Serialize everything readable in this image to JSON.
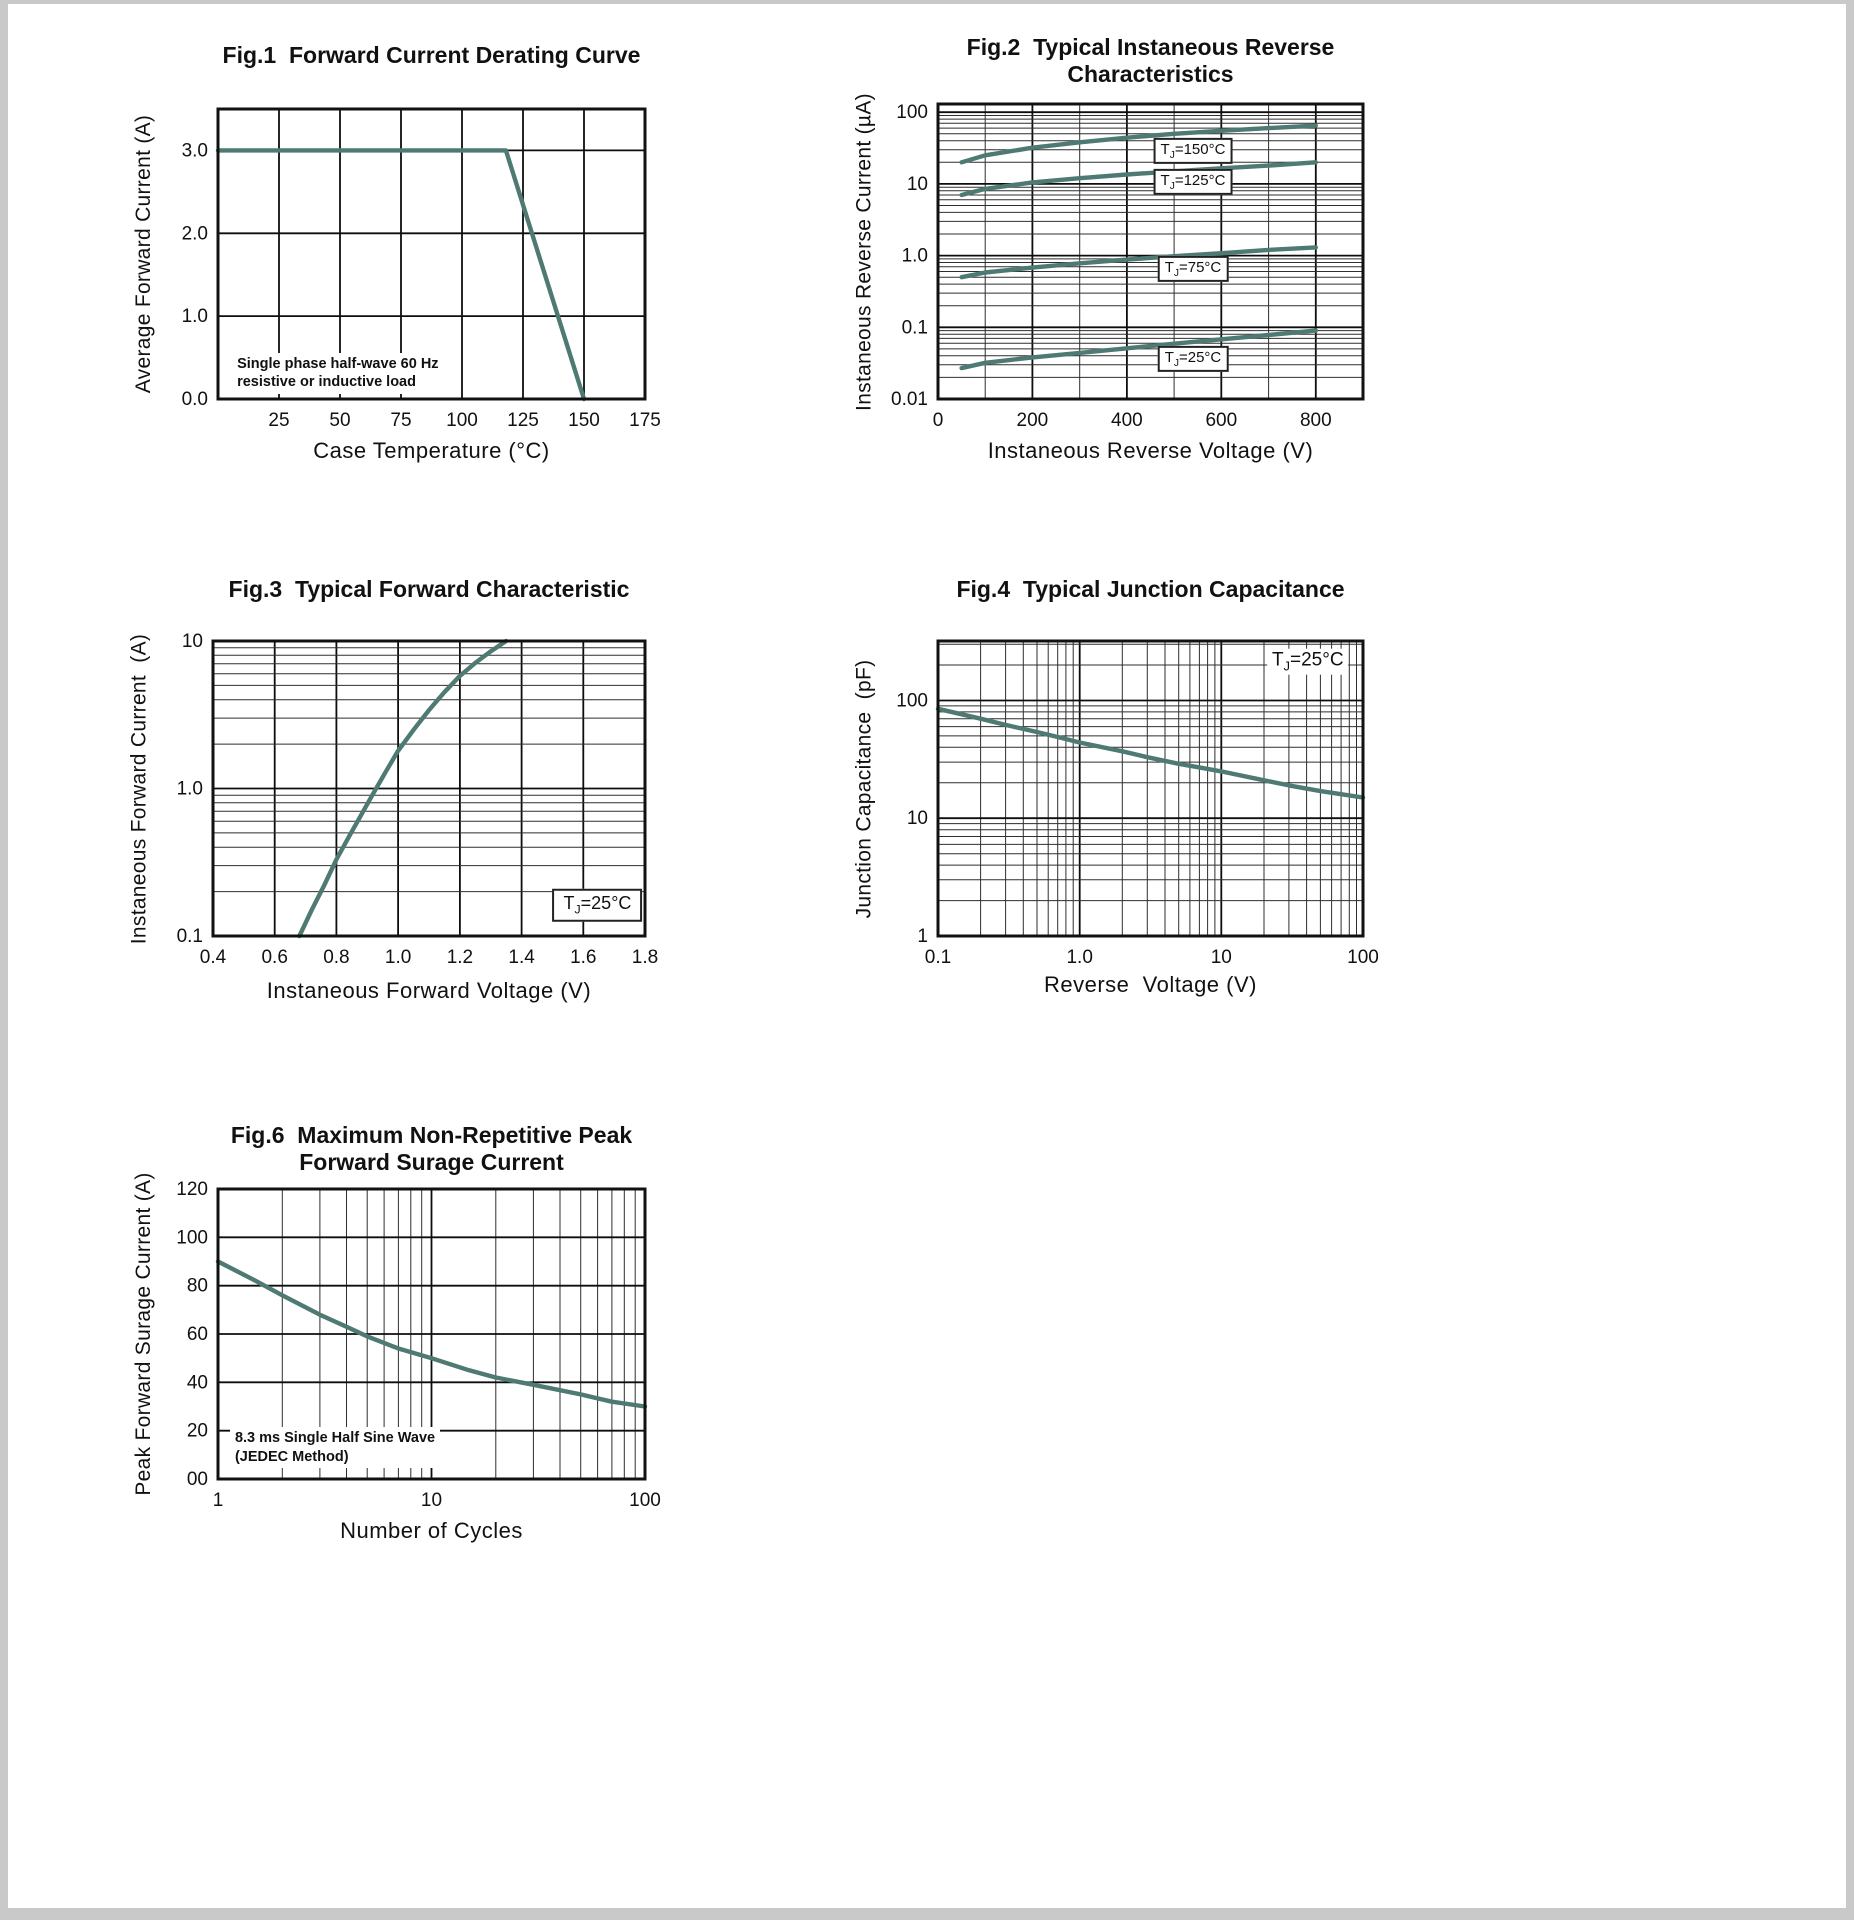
{
  "page": {
    "background": "#ffffff"
  },
  "theme": {
    "curve_color": "#4f7a74",
    "grid_major": "#0d0d0d",
    "grid_minor": "#2e2e2e",
    "border_color": "#111111"
  },
  "chart_data": [
    {
      "id": "fig1",
      "type": "line",
      "title": "Fig.1  Forward Current Derating Curve",
      "xlabel": "Case Temperature (°C)",
      "ylabel": "Average Forward Current (A)",
      "x_axis": {
        "scale": "linear",
        "min": 0,
        "max": 175,
        "grid": [
          25,
          50,
          75,
          100,
          125,
          150
        ],
        "ticks": [
          {
            "v": 25,
            "label": "25"
          },
          {
            "v": 50,
            "label": "50"
          },
          {
            "v": 75,
            "label": "75"
          },
          {
            "v": 100,
            "label": "100"
          },
          {
            "v": 125,
            "label": "125"
          },
          {
            "v": 150,
            "label": "150"
          },
          {
            "v": 175,
            "label": "175"
          }
        ]
      },
      "y_axis": {
        "scale": "linear",
        "min": 0,
        "max": 3.5,
        "grid": [
          1,
          2,
          3
        ],
        "ticks": [
          {
            "v": 0,
            "label": "0.0"
          },
          {
            "v": 1,
            "label": "1.0"
          },
          {
            "v": 2,
            "label": "2.0"
          },
          {
            "v": 3,
            "label": "3.0"
          }
        ]
      },
      "series": [
        {
          "name": "forward-current-derating",
          "points": [
            [
              0,
              3.0
            ],
            [
              118,
              3.0
            ],
            [
              150,
              0
            ]
          ]
        }
      ],
      "annotations": [
        {
          "name": "load-condition-note",
          "style": "note",
          "anchor": "tl",
          "fx": 0.033,
          "fy": 0.84,
          "text": "Single phase half-wave 60 Hz\nresistive or inductive load"
        }
      ]
    },
    {
      "id": "fig2",
      "type": "line",
      "title": "Fig.2  Typical Instaneous Reverse\nCharacteristics",
      "xlabel": "Instaneous Reverse Voltage (V)",
      "ylabel": "Instaneous Reverse Current (µA)",
      "x_axis": {
        "scale": "linear",
        "min": 0,
        "max": 900,
        "grid": [
          100,
          200,
          300,
          400,
          500,
          600,
          700,
          800
        ],
        "major_grid": [
          200,
          400,
          600,
          800
        ],
        "ticks": [
          {
            "v": 0,
            "label": "0"
          },
          {
            "v": 200,
            "label": "200"
          },
          {
            "v": 400,
            "label": "400"
          },
          {
            "v": 600,
            "label": "600"
          },
          {
            "v": 800,
            "label": "800"
          }
        ]
      },
      "y_axis": {
        "scale": "log",
        "min": 0.01,
        "max": 130,
        "ticks": [
          {
            "v": 100,
            "label": "100"
          },
          {
            "v": 10,
            "label": "10"
          },
          {
            "v": 1,
            "label": "1.0"
          },
          {
            "v": 0.1,
            "label": "0.1"
          },
          {
            "v": 0.01,
            "label": "0.01"
          }
        ]
      },
      "series": [
        {
          "name": "tj-150c",
          "points": [
            [
              50,
              20
            ],
            [
              100,
              25
            ],
            [
              200,
              32
            ],
            [
              300,
              38
            ],
            [
              400,
              44
            ],
            [
              500,
              50
            ],
            [
              600,
              55
            ],
            [
              700,
              60
            ],
            [
              800,
              65
            ]
          ]
        },
        {
          "name": "tj-125c",
          "points": [
            [
              50,
              7
            ],
            [
              100,
              8.5
            ],
            [
              200,
              10.5
            ],
            [
              300,
              12
            ],
            [
              400,
              13.5
            ],
            [
              500,
              15
            ],
            [
              600,
              16.5
            ],
            [
              700,
              18
            ],
            [
              800,
              20
            ]
          ]
        },
        {
          "name": "tj-75c",
          "points": [
            [
              50,
              0.5
            ],
            [
              100,
              0.58
            ],
            [
              200,
              0.68
            ],
            [
              300,
              0.78
            ],
            [
              400,
              0.88
            ],
            [
              500,
              0.98
            ],
            [
              600,
              1.08
            ],
            [
              700,
              1.2
            ],
            [
              800,
              1.3
            ]
          ]
        },
        {
          "name": "tj-25c",
          "points": [
            [
              50,
              0.027
            ],
            [
              100,
              0.032
            ],
            [
              200,
              0.038
            ],
            [
              300,
              0.044
            ],
            [
              400,
              0.051
            ],
            [
              500,
              0.059
            ],
            [
              600,
              0.068
            ],
            [
              700,
              0.078
            ],
            [
              800,
              0.09
            ]
          ]
        }
      ],
      "annotations": [
        {
          "name": "tj-150c-label",
          "style": "boxed",
          "anchor": "center",
          "fx": 0.6,
          "fy": 0.158,
          "text": "TJ=150°C"
        },
        {
          "name": "tj-125c-label",
          "style": "boxed",
          "anchor": "center",
          "fx": 0.6,
          "fy": 0.265,
          "text": "TJ=125°C"
        },
        {
          "name": "tj-75c-label",
          "style": "boxed",
          "anchor": "center",
          "fx": 0.6,
          "fy": 0.558,
          "text": "TJ=75°C"
        },
        {
          "name": "tj-25c-label",
          "style": "boxed",
          "anchor": "center",
          "fx": 0.6,
          "fy": 0.864,
          "text": "TJ=25°C"
        }
      ]
    },
    {
      "id": "fig3",
      "type": "line",
      "title": "Fig.3  Typical Forward Characteristic",
      "xlabel": "Instaneous Forward Voltage (V)",
      "ylabel": "Instaneous Forward Current  (A)",
      "x_axis": {
        "scale": "linear",
        "min": 0.4,
        "max": 1.8,
        "grid": [
          0.6,
          0.8,
          1.0,
          1.2,
          1.4,
          1.6
        ],
        "ticks": [
          {
            "v": 0.4,
            "label": "0.4"
          },
          {
            "v": 0.6,
            "label": "0.6"
          },
          {
            "v": 0.8,
            "label": "0.8"
          },
          {
            "v": 1.0,
            "label": "1.0"
          },
          {
            "v": 1.2,
            "label": "1.2"
          },
          {
            "v": 1.4,
            "label": "1.4"
          },
          {
            "v": 1.6,
            "label": "1.6"
          },
          {
            "v": 1.8,
            "label": "1.8"
          }
        ]
      },
      "y_axis": {
        "scale": "log",
        "min": 0.1,
        "max": 10,
        "ticks": [
          {
            "v": 10,
            "label": "10"
          },
          {
            "v": 1,
            "label": "1.0"
          },
          {
            "v": 0.1,
            "label": "0.1"
          }
        ]
      },
      "series": [
        {
          "name": "forward-characteristic",
          "points": [
            [
              0.68,
              0.1
            ],
            [
              0.72,
              0.15
            ],
            [
              0.76,
              0.22
            ],
            [
              0.8,
              0.33
            ],
            [
              0.84,
              0.47
            ],
            [
              0.88,
              0.66
            ],
            [
              0.92,
              0.93
            ],
            [
              0.96,
              1.3
            ],
            [
              1.0,
              1.8
            ],
            [
              1.05,
              2.5
            ],
            [
              1.1,
              3.4
            ],
            [
              1.15,
              4.5
            ],
            [
              1.2,
              5.8
            ],
            [
              1.25,
              7.1
            ],
            [
              1.3,
              8.5
            ],
            [
              1.35,
              10
            ]
          ]
        }
      ],
      "annotations": [
        {
          "name": "tj-25c-label",
          "style": "boxed-lg",
          "anchor": "center",
          "fx": 0.89,
          "fy": 0.895,
          "text": "TJ=25°C"
        }
      ]
    },
    {
      "id": "fig4",
      "type": "line",
      "title": "Fig.4  Typical Junction Capacitance",
      "xlabel": "Reverse  Voltage (V)",
      "ylabel": "Junction Capacitance  (pF)",
      "x_axis": {
        "scale": "log",
        "min": 0.1,
        "max": 100,
        "ticks": [
          {
            "v": 0.1,
            "label": "0.1"
          },
          {
            "v": 1,
            "label": "1.0"
          },
          {
            "v": 10,
            "label": "10"
          },
          {
            "v": 100,
            "label": "100"
          }
        ]
      },
      "y_axis": {
        "scale": "log",
        "min": 1,
        "max": 320,
        "ticks": [
          {
            "v": 100,
            "label": "100"
          },
          {
            "v": 10,
            "label": "10"
          },
          {
            "v": 1,
            "label": "1"
          }
        ]
      },
      "series": [
        {
          "name": "junction-capacitance",
          "points": [
            [
              0.1,
              85
            ],
            [
              0.2,
              70
            ],
            [
              0.3,
              62
            ],
            [
              0.5,
              54
            ],
            [
              0.7,
              49
            ],
            [
              1,
              44
            ],
            [
              2,
              37
            ],
            [
              3,
              33
            ],
            [
              5,
              29
            ],
            [
              7,
              27
            ],
            [
              10,
              25
            ],
            [
              20,
              21
            ],
            [
              30,
              19
            ],
            [
              50,
              17
            ],
            [
              70,
              16
            ],
            [
              100,
              15
            ]
          ]
        }
      ],
      "annotations": [
        {
          "name": "tj-25c-label",
          "style": "plain",
          "anchor": "center",
          "fx": 0.87,
          "fy": 0.07,
          "text": "TJ=25°C"
        }
      ]
    },
    {
      "id": "fig6",
      "type": "line",
      "title": "Fig.6  Maximum Non-Repetitive Peak\nForward Surage Current",
      "xlabel": "Number of Cycles",
      "ylabel": "Peak Forward Surage Current (A)",
      "x_axis": {
        "scale": "log",
        "min": 1,
        "max": 100,
        "ticks": [
          {
            "v": 1,
            "label": "1"
          },
          {
            "v": 10,
            "label": "10"
          },
          {
            "v": 100,
            "label": "100"
          }
        ]
      },
      "y_axis": {
        "scale": "linear",
        "min": 0,
        "max": 120,
        "grid": [
          20,
          40,
          60,
          80,
          100
        ],
        "ticks": [
          {
            "v": 0,
            "label": "00"
          },
          {
            "v": 20,
            "label": "20"
          },
          {
            "v": 40,
            "label": "40"
          },
          {
            "v": 60,
            "label": "60"
          },
          {
            "v": 80,
            "label": "80"
          },
          {
            "v": 100,
            "label": "100"
          },
          {
            "v": 120,
            "label": "120"
          }
        ]
      },
      "series": [
        {
          "name": "surge-current",
          "points": [
            [
              1,
              90
            ],
            [
              1.5,
              82
            ],
            [
              2,
              76
            ],
            [
              3,
              68
            ],
            [
              4,
              63
            ],
            [
              5,
              59
            ],
            [
              7,
              54
            ],
            [
              10,
              50
            ],
            [
              15,
              45
            ],
            [
              20,
              42
            ],
            [
              30,
              39
            ],
            [
              50,
              35
            ],
            [
              70,
              32
            ],
            [
              100,
              30
            ]
          ]
        }
      ],
      "annotations": [
        {
          "name": "surge-condition-note",
          "style": "note",
          "anchor": "tl",
          "fx": 0.028,
          "fy": 0.82,
          "text": "8.3 ms Single Half Sine Wave\n(JEDEC Method)"
        }
      ]
    }
  ]
}
